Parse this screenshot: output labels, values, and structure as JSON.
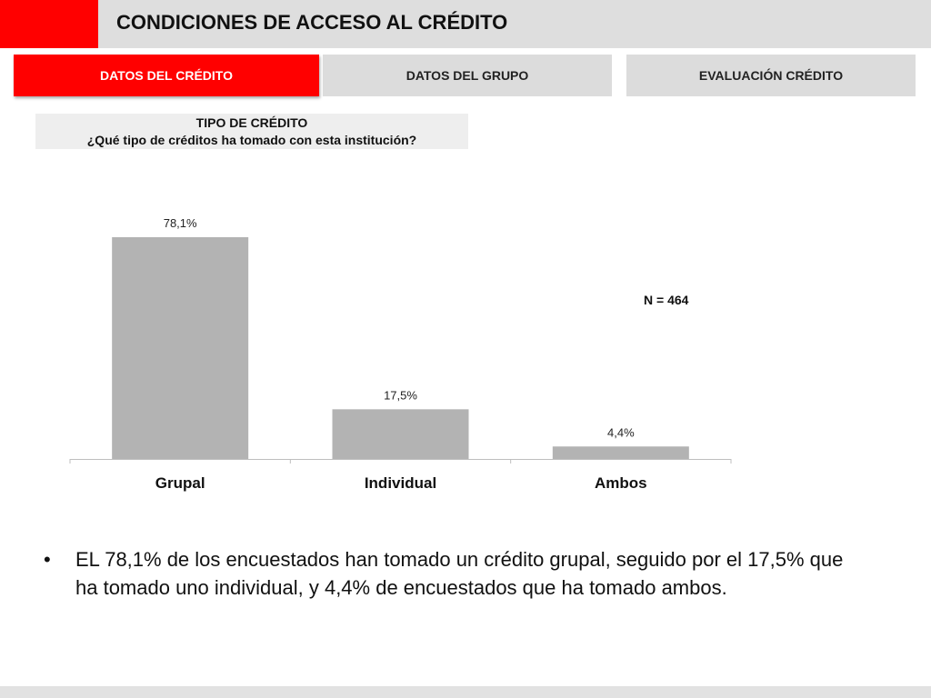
{
  "header": {
    "title": "CONDICIONES DE ACCESO AL CRÉDITO",
    "accent_color": "#ff0000"
  },
  "tabs": [
    {
      "label": "DATOS DEL CRÉDITO",
      "active": true
    },
    {
      "label": "DATOS DEL GRUPO",
      "active": false
    },
    {
      "label": "EVALUACIÓN CRÉDITO",
      "active": false
    }
  ],
  "question": {
    "title": "TIPO DE CRÉDITO",
    "text": "¿Qué tipo de créditos ha tomado con esta institución?"
  },
  "sample_size": "N = 464",
  "chart_data": {
    "type": "bar",
    "categories": [
      "Grupal",
      "Individual",
      "Ambos"
    ],
    "values": [
      78.1,
      17.5,
      4.4
    ],
    "value_labels": [
      "78,1%",
      "17,5%",
      "4,4%"
    ],
    "bar_color": "#b3b3b3",
    "ylim": [
      0,
      80
    ],
    "grid": false,
    "legend": "none"
  },
  "bullet": {
    "symbol": "•",
    "text": "EL 78,1% de los encuestados han tomado un crédito grupal, seguido por el 17,5% que ha tomado uno individual, y 4,4% de encuestados que ha tomado ambos."
  }
}
